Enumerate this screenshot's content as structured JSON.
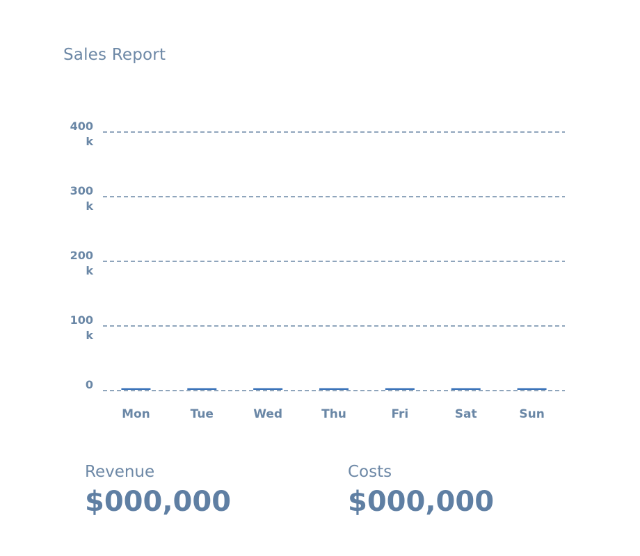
{
  "title": "Sales Report",
  "chart_data": {
    "type": "bar",
    "title": "Sales Report",
    "xlabel": "",
    "ylabel": "",
    "categories": [
      "Mon",
      "Tue",
      "Wed",
      "Thu",
      "Fri",
      "Sat",
      "Sun"
    ],
    "values": [
      0,
      0,
      0,
      0,
      0,
      0,
      0
    ],
    "ylim": [
      0,
      400000
    ],
    "yticks": [
      {
        "value": 400000,
        "line1": "400",
        "line2": "k"
      },
      {
        "value": 300000,
        "line1": "300",
        "line2": "k"
      },
      {
        "value": 200000,
        "line1": "200",
        "line2": "k"
      },
      {
        "value": 100000,
        "line1": "100",
        "line2": "k"
      },
      {
        "value": 0,
        "line1": "0",
        "line2": ""
      }
    ],
    "grid": "dashed horizontal",
    "bar_color": "#3b73b9",
    "grid_color": "#6a87a6"
  },
  "stats": {
    "revenue": {
      "label": "Revenue",
      "value": "$000,000"
    },
    "costs": {
      "label": "Costs",
      "value": "$000,000"
    }
  }
}
